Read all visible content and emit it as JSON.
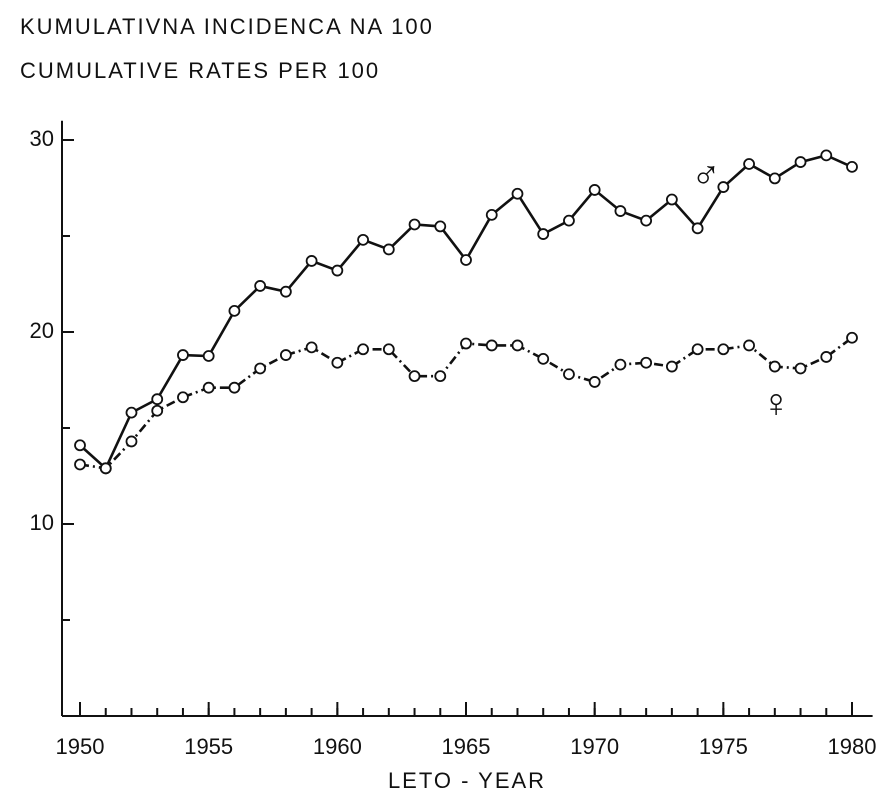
{
  "chart_data": {
    "type": "line",
    "title": "KUMULATIVNA INCIDENCA NA 100",
    "subtitle": "CUMULATIVE RATES PER 100",
    "x_label": "LETO - YEAR",
    "x": [
      1950,
      1951,
      1952,
      1953,
      1954,
      1955,
      1956,
      1957,
      1958,
      1959,
      1960,
      1961,
      1962,
      1963,
      1964,
      1965,
      1966,
      1967,
      1968,
      1969,
      1970,
      1971,
      1972,
      1973,
      1974,
      1975,
      1976,
      1977,
      1978,
      1979,
      1980
    ],
    "series": [
      {
        "name": "♂",
        "color": "#111111",
        "dash": false,
        "values": [
          14.1,
          12.9,
          15.8,
          16.5,
          18.8,
          18.75,
          21.1,
          22.4,
          22.1,
          23.7,
          23.2,
          24.8,
          24.3,
          25.6,
          25.5,
          23.75,
          26.1,
          27.2,
          25.1,
          25.8,
          27.4,
          26.3,
          25.8,
          26.9,
          25.4,
          27.55,
          28.75,
          28.0,
          28.85,
          29.2,
          28.6
        ]
      },
      {
        "name": "♀",
        "color": "#111111",
        "dash": true,
        "values": [
          13.1,
          12.9,
          14.3,
          15.9,
          16.6,
          17.1,
          17.1,
          18.1,
          18.8,
          19.2,
          18.4,
          19.1,
          19.1,
          17.7,
          17.7,
          19.4,
          19.3,
          19.3,
          18.6,
          17.8,
          17.4,
          18.3,
          18.4,
          18.2,
          19.1,
          19.1,
          19.3,
          18.2,
          18.1,
          18.7,
          19.7
        ]
      }
    ],
    "xlim": [
      1949.3,
      1980.8
    ],
    "xticks": [
      1950,
      1955,
      1960,
      1965,
      1970,
      1975,
      1980
    ],
    "ylim": [
      0,
      31
    ],
    "yticks": [
      10,
      20,
      30
    ],
    "yminor_ticks": [
      5,
      15,
      25
    ],
    "grid": false
  }
}
